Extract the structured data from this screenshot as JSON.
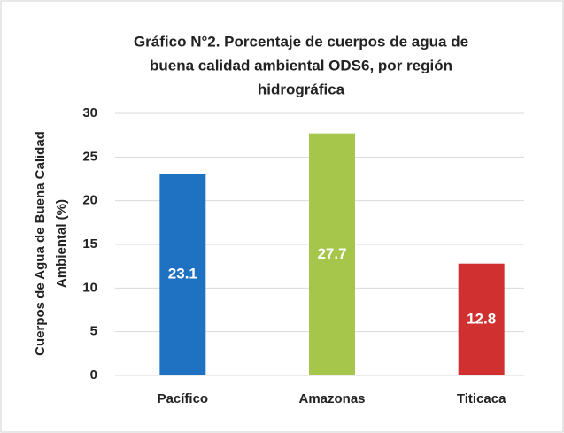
{
  "chart_data": {
    "type": "bar",
    "title": [
      "Gráfico N°2. Porcentaje de cuerpos de agua de",
      "buena calidad ambiental ODS6, por región",
      "hidrográfica"
    ],
    "y_label": [
      "Cuerpos de Agua de Buena Calidad",
      "Ambiental (%)"
    ],
    "categories": [
      "Pacífico",
      "Amazonas",
      "Titicaca"
    ],
    "values": [
      23.1,
      27.7,
      12.8
    ],
    "colors": [
      "#1f72c1",
      "#a5c54b",
      "#d0302f"
    ],
    "ylim": [
      0,
      30
    ],
    "yticks": [
      0,
      5,
      10,
      15,
      20,
      25,
      30
    ],
    "grid": true
  }
}
